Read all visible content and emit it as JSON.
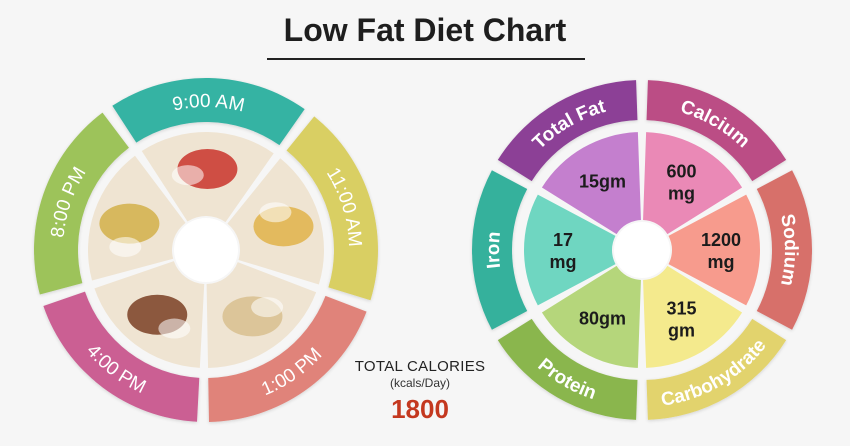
{
  "title": "Low Fat Diet Chart",
  "meal_wheel": {
    "times": [
      {
        "label": "9:00 AM",
        "color": "#36b3a3"
      },
      {
        "label": "11:00 AM",
        "color": "#d9cf63"
      },
      {
        "label": "1:00 PM",
        "color": "#e0837a"
      },
      {
        "label": "4:00 PM",
        "color": "#cb5f93"
      },
      {
        "label": "8:00 PM",
        "color": "#9dc35a"
      }
    ],
    "foods": [
      {
        "name": "tomato-bowl-image",
        "color": "#c9342c"
      },
      {
        "name": "fruit-salad-image",
        "color": "#e0b34a"
      },
      {
        "name": "chapati-image",
        "color": "#d8c08f"
      },
      {
        "name": "tea-cup-image",
        "color": "#7a3f24"
      },
      {
        "name": "poha-chapati-image",
        "color": "#d2b04a"
      }
    ]
  },
  "totals": {
    "label": "TOTAL CALORIES",
    "unit": "(kcals/Day)",
    "value": "1800"
  },
  "nutrient_wheel": {
    "nutrients": [
      {
        "name": "Total Fat",
        "value": "15gm",
        "outer": "#8c3f96",
        "inner": "#c47fce"
      },
      {
        "name": "Calcium",
        "value": "600 mg",
        "outer": "#bb4e85",
        "inner": "#ea89b6"
      },
      {
        "name": "Sodium",
        "value": "1200 mg",
        "outer": "#d7706b",
        "inner": "#f79b8d"
      },
      {
        "name": "Carbohydrate",
        "value": "315 gm",
        "outer": "#e2d36d",
        "inner": "#f4ea8d"
      },
      {
        "name": "Protein",
        "value": "80gm",
        "outer": "#8ab64e",
        "inner": "#b5d67b"
      },
      {
        "name": "Iron",
        "value": "17 mg",
        "outer": "#36b19c",
        "inner": "#6fd6c1"
      }
    ]
  }
}
